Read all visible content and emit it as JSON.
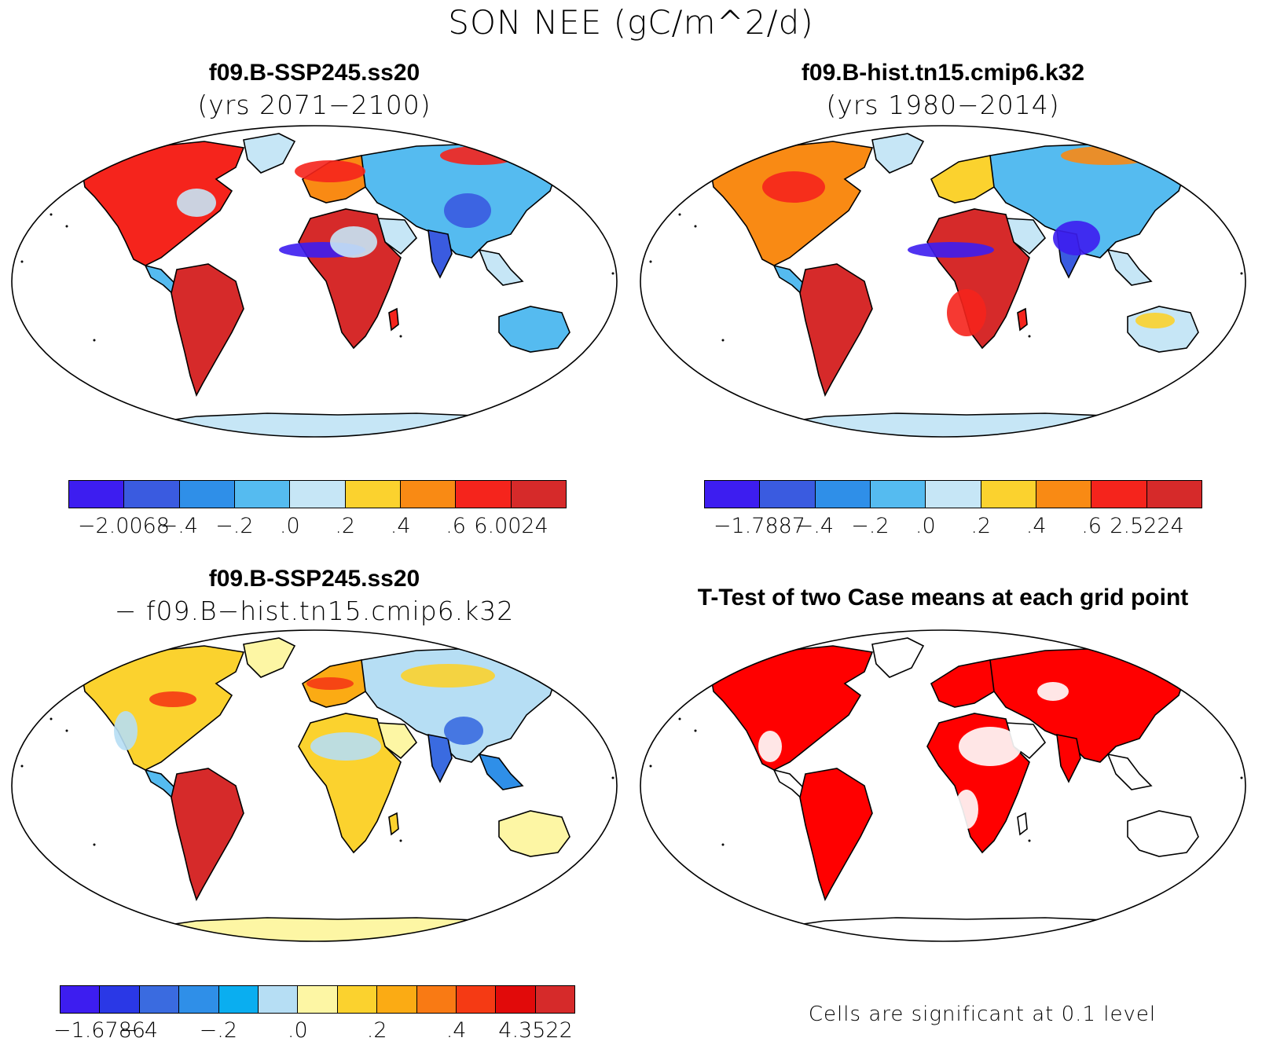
{
  "figure": {
    "title": "SON NEE (gC/m^2/d)"
  },
  "panels": [
    {
      "id": "top-left",
      "title_line1": "f09.B-SSP245.ss20",
      "title_line2": "(yrs 2071−2100)",
      "colorbar": {
        "colors": [
          "#3d1df0",
          "#3a5be0",
          "#2f8fe8",
          "#55bbf0",
          "#c6e6f6",
          "#fbd22e",
          "#f98a14",
          "#f5241c",
          "#d62a2a"
        ],
        "tick_labels": [
          "−2.0068",
          "−.4",
          "−.2",
          ".0",
          ".2",
          ".4",
          ".6",
          "6.0024"
        ]
      }
    },
    {
      "id": "top-right",
      "title_line1": "f09.B-hist.tn15.cmip6.k32",
      "title_line2": "(yrs 1980−2014)",
      "colorbar": {
        "colors": [
          "#3d1df0",
          "#3a5be0",
          "#2f8fe8",
          "#55bbf0",
          "#c6e6f6",
          "#fbd22e",
          "#f98a14",
          "#f5241c",
          "#d62a2a"
        ],
        "tick_labels": [
          "−1.7887",
          "−.4",
          "−.2",
          ".0",
          ".2",
          ".4",
          ".6",
          "2.5224"
        ]
      }
    },
    {
      "id": "bottom-left",
      "title_line1": "f09.B-SSP245.ss20",
      "title_line2": "− f09.B−hist.tn15.cmip6.k32",
      "colorbar": {
        "colors": [
          "#3d1df0",
          "#2a38e6",
          "#3a6be0",
          "#2f8fe8",
          "#0aaef0",
          "#b6def4",
          "#fdf6a4",
          "#fbd22e",
          "#fbab14",
          "#f97a14",
          "#f53a14",
          "#e10a0a",
          "#d62a2a"
        ],
        "tick_labels": [
          "−1.6786",
          "−.4",
          "−.2",
          ".0",
          ".2",
          ".4",
          "4.3522"
        ]
      }
    },
    {
      "id": "bottom-right",
      "title_line1": "T-Test of two Case means at each grid point",
      "footnote": "Cells are significant at 0.1 level"
    }
  ],
  "colors": {
    "ocean": "#ffffff",
    "coastline": "#000000",
    "significant": "#ff0000",
    "antarctica_tl": "#c6e6f6",
    "antarctica_diff": "#fdf6a4"
  },
  "icons": [
    "robinson-world-map"
  ]
}
